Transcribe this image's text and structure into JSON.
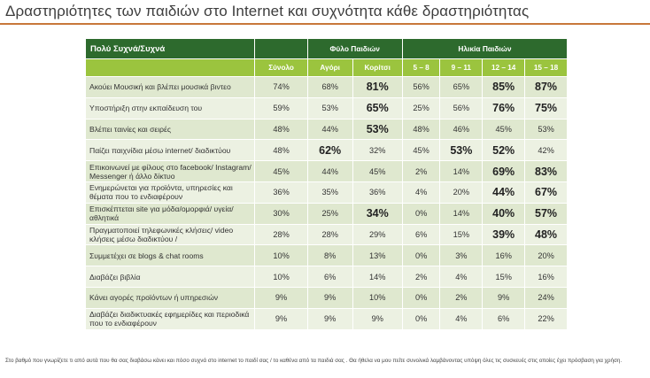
{
  "title": "Δραστηριότητες των παιδιών στο Internet και συχνότητα κάθε δραστηριότητας",
  "table": {
    "category_header": "Πολύ Συχνά/Συχνά",
    "group_gender": "Φύλο Παιδιών",
    "group_age": "Ηλικία Παιδιών",
    "columns": [
      "Σύνολο",
      "Αγόρι",
      "Κορίτσι",
      "5 – 8",
      "9 – 11",
      "12 – 14",
      "15 – 18"
    ],
    "rows": [
      {
        "label": "Ακούει Μουσική και βλέπει μουσικά βιντεο",
        "values": [
          "74%",
          "68%",
          "81%",
          "56%",
          "65%",
          "85%",
          "87%"
        ],
        "bold": [
          false,
          false,
          true,
          false,
          false,
          true,
          true
        ]
      },
      {
        "label": "Υποστήριξη στην εκπαίδευση του",
        "values": [
          "59%",
          "53%",
          "65%",
          "25%",
          "56%",
          "76%",
          "75%"
        ],
        "bold": [
          false,
          false,
          true,
          false,
          false,
          true,
          true
        ]
      },
      {
        "label": "Βλέπει ταινίες και σειρές",
        "values": [
          "48%",
          "44%",
          "53%",
          "48%",
          "46%",
          "45%",
          "53%"
        ],
        "bold": [
          false,
          false,
          true,
          false,
          false,
          false,
          false
        ]
      },
      {
        "label": "Παίζει παιχνίδια μέσω internet/ διαδικτύου",
        "values": [
          "48%",
          "62%",
          "32%",
          "45%",
          "53%",
          "52%",
          "42%"
        ],
        "bold": [
          false,
          true,
          false,
          false,
          true,
          true,
          false
        ]
      },
      {
        "label": "Επικοινωνεί με φίλους στο facebook/ Instagram/ Messenger ή άλλο δίκτυο",
        "values": [
          "45%",
          "44%",
          "45%",
          "2%",
          "14%",
          "69%",
          "83%"
        ],
        "bold": [
          false,
          false,
          false,
          false,
          false,
          true,
          true
        ]
      },
      {
        "label": "Ενημερώνεται για προϊόντα, υπηρεσίες και θέματα που το ενδιαφέρουν",
        "values": [
          "36%",
          "35%",
          "36%",
          "4%",
          "20%",
          "44%",
          "67%"
        ],
        "bold": [
          false,
          false,
          false,
          false,
          false,
          true,
          true
        ]
      },
      {
        "label": "Επισκέπτεται site για μόδα/ομορφιά/ υγεία/αθλητικά",
        "values": [
          "30%",
          "25%",
          "34%",
          "0%",
          "14%",
          "40%",
          "57%"
        ],
        "bold": [
          false,
          false,
          true,
          false,
          false,
          true,
          true
        ]
      },
      {
        "label": "Πραγματοποιεί τηλεφωνικές κλήσεις/ video κλήσεις μέσω διαδικτύου /",
        "values": [
          "28%",
          "28%",
          "29%",
          "6%",
          "15%",
          "39%",
          "48%"
        ],
        "bold": [
          false,
          false,
          false,
          false,
          false,
          true,
          true
        ]
      },
      {
        "label": "Συμμετέχει σε blogs & chat rooms",
        "values": [
          "10%",
          "8%",
          "13%",
          "0%",
          "3%",
          "16%",
          "20%"
        ],
        "bold": [
          false,
          false,
          false,
          false,
          false,
          false,
          false
        ]
      },
      {
        "label": "Διαβάζει βιβλία",
        "values": [
          "10%",
          "6%",
          "14%",
          "2%",
          "4%",
          "15%",
          "16%"
        ],
        "bold": [
          false,
          false,
          false,
          false,
          false,
          false,
          false
        ]
      },
      {
        "label": "Κάνει αγορές προϊόντων ή υπηρεσιών",
        "values": [
          "9%",
          "9%",
          "10%",
          "0%",
          "2%",
          "9%",
          "24%"
        ],
        "bold": [
          false,
          false,
          false,
          false,
          false,
          false,
          false
        ]
      },
      {
        "label": "Διαβάζει διαδικτυακές εφημερίδες και περιοδικά που το ενδιαφέρουν",
        "values": [
          "9%",
          "9%",
          "9%",
          "0%",
          "4%",
          "6%",
          "22%"
        ],
        "bold": [
          false,
          false,
          false,
          false,
          false,
          false,
          false
        ]
      }
    ]
  },
  "footnote": "Στο βαθμό που γνωρίζετε τι από αυτά που θα σας διαβάσω κάνει και πόσο συχνά στο internet το παιδί σας / το καθένα από τα παιδιά σας . Θα ήθελα να μου πείτε συνολικά λαμβάνοντας υπόψη όλες τις συσκευές στις οποίες έχει πρόσβαση για χρήση.",
  "colors": {
    "header_dark_green": "#2d6a2d",
    "header_light_green": "#9bc43e",
    "row_odd": "#dfe8cf",
    "row_even": "#ecf1e2",
    "title_rule": "#c8783a"
  }
}
